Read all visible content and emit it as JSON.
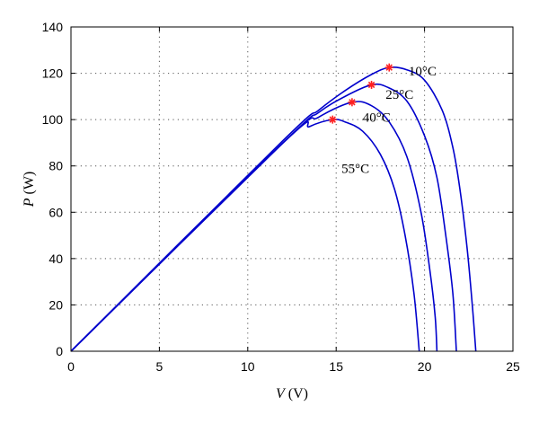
{
  "chart_data": {
    "type": "line",
    "xlabel": {
      "symbol": "V",
      "unit": " (V)"
    },
    "ylabel": {
      "symbol": "P",
      "unit": " (W)"
    },
    "xlim": [
      0,
      25
    ],
    "ylim": [
      0,
      140
    ],
    "xticks": [
      0,
      5,
      10,
      15,
      20,
      25
    ],
    "yticks": [
      0,
      20,
      40,
      60,
      80,
      100,
      120,
      140
    ],
    "grid": true,
    "line_color": "#0000cc",
    "marker_color": "#ff2020",
    "series": [
      {
        "name": "10°C",
        "label_pos": [
          19.1,
          119
        ],
        "mpp": [
          18.0,
          122.5
        ],
        "points": [
          [
            0,
            0
          ],
          [
            12,
            91
          ],
          [
            14,
            104
          ],
          [
            15.5,
            112.5
          ],
          [
            17,
            119.5
          ],
          [
            18,
            122.5
          ],
          [
            19,
            121.5
          ],
          [
            20,
            117
          ],
          [
            21,
            104
          ],
          [
            21.6,
            88
          ],
          [
            22,
            70
          ],
          [
            22.4,
            45
          ],
          [
            22.7,
            20
          ],
          [
            22.9,
            0
          ]
        ]
      },
      {
        "name": "25°C",
        "label_pos": [
          17.8,
          109
        ],
        "mpp": [
          17.0,
          115
        ],
        "points": [
          [
            0,
            0
          ],
          [
            12,
            90
          ],
          [
            14,
            103
          ],
          [
            15.5,
            110
          ],
          [
            17,
            115
          ],
          [
            17.9,
            114
          ],
          [
            19,
            108
          ],
          [
            20,
            93
          ],
          [
            20.7,
            75
          ],
          [
            21.2,
            50
          ],
          [
            21.6,
            25
          ],
          [
            21.8,
            0
          ]
        ]
      },
      {
        "name": "40°C",
        "label_pos": [
          16.5,
          99
        ],
        "mpp": [
          15.9,
          107.5
        ],
        "points": [
          [
            0,
            0
          ],
          [
            12,
            90
          ],
          [
            14,
            101
          ],
          [
            15.9,
            107.5
          ],
          [
            17,
            106
          ],
          [
            18,
            99
          ],
          [
            19,
            84
          ],
          [
            19.8,
            60
          ],
          [
            20.3,
            35
          ],
          [
            20.6,
            15
          ],
          [
            20.7,
            0
          ]
        ]
      },
      {
        "name": "55°C",
        "label_pos": [
          15.3,
          77
        ],
        "mpp": [
          14.8,
          100
        ],
        "points": [
          [
            0,
            0
          ],
          [
            12,
            90
          ],
          [
            13.5,
            97
          ],
          [
            14.8,
            100
          ],
          [
            15.5,
            99
          ],
          [
            16.5,
            95
          ],
          [
            17.5,
            85
          ],
          [
            18.3,
            70
          ],
          [
            18.9,
            50
          ],
          [
            19.4,
            25
          ],
          [
            19.7,
            0
          ]
        ]
      }
    ]
  }
}
